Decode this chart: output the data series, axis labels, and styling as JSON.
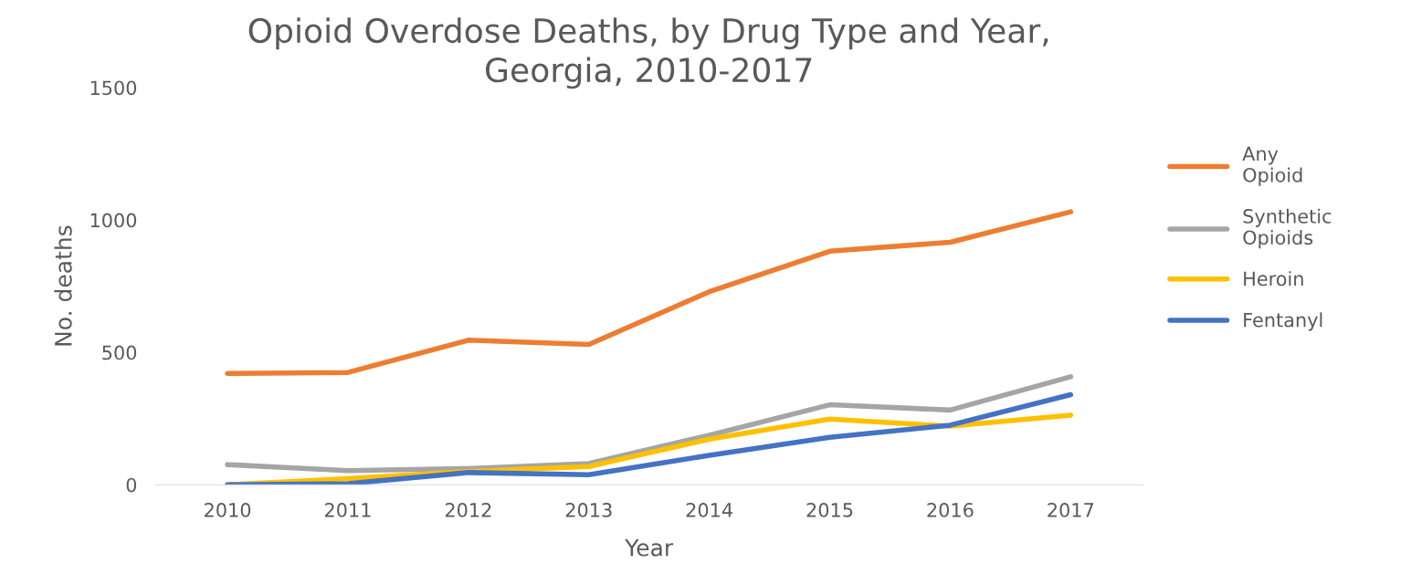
{
  "chart_data": {
    "type": "line",
    "title": "Opioid Overdose Deaths, by Drug Type and Year,\nGeorgia, 2010-2017",
    "xlabel": "Year",
    "ylabel": "No. deaths",
    "categories": [
      "2010",
      "2011",
      "2012",
      "2013",
      "2014",
      "2015",
      "2016",
      "2017"
    ],
    "series": [
      {
        "name": "Any\nOpioid",
        "color": "#ed7d31",
        "values": [
          420,
          424,
          546,
          530,
          729,
          882,
          916,
          1031
        ]
      },
      {
        "name": "Synthetic\nOpioids",
        "color": "#a5a5a5",
        "values": [
          76,
          53,
          61,
          80,
          187,
          302,
          282,
          408
        ]
      },
      {
        "name": "Heroin",
        "color": "#ffc000",
        "values": [
          0,
          23,
          50,
          69,
          172,
          248,
          221,
          263
        ]
      },
      {
        "name": "Fentanyl",
        "color": "#4472c4",
        "values": [
          0,
          4,
          46,
          38,
          111,
          179,
          225,
          340
        ]
      }
    ],
    "ylim": [
      0,
      1500
    ],
    "yticks": [
      0,
      500,
      1000,
      1500
    ],
    "grid": false,
    "legend": "right",
    "marker": "none",
    "line_style": "solid"
  }
}
